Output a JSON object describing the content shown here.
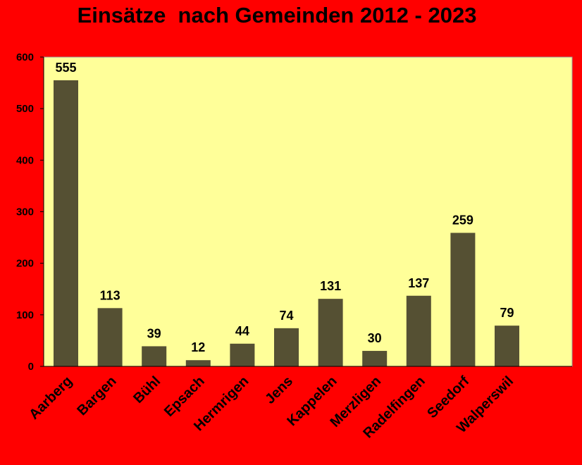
{
  "chart_data": {
    "type": "bar",
    "title": "Einsätze  nach Gemeinden 2012 - 2023",
    "categories": [
      "Aarberg",
      "Bargen",
      "Bühl",
      "Epsach",
      "Hermrigen",
      "Jens",
      "Kappelen",
      "Merzligen",
      "Radelfingen",
      "Seedorf",
      "Walperswil"
    ],
    "values": [
      555,
      113,
      39,
      12,
      44,
      74,
      131,
      30,
      137,
      259,
      79
    ],
    "data_labels": [
      "555",
      "113",
      "39",
      "12",
      "44",
      "74",
      "131",
      "30",
      "137",
      "259",
      "79"
    ],
    "ylim": [
      0,
      600
    ],
    "yticks": [
      0,
      100,
      200,
      300,
      400,
      500,
      600
    ],
    "ytick_labels": [
      "0",
      "100",
      "200",
      "300",
      "400",
      "500",
      "600"
    ],
    "grid": false,
    "legend": "none",
    "colors": {
      "background": "#ff0000",
      "plot_area": "#ffff99",
      "bar": "#555033",
      "label_dark": "#000000",
      "label_inside": "#ffffff"
    }
  }
}
